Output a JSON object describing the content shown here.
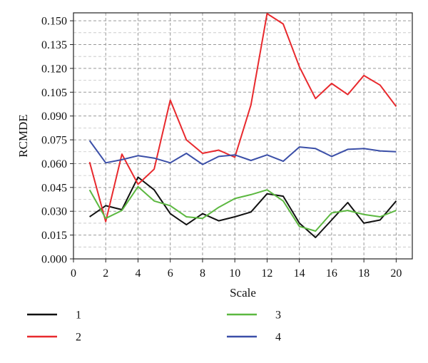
{
  "chart_data": {
    "type": "line",
    "xlabel": "Scale",
    "ylabel": "RCMDE",
    "xlim": [
      0,
      21
    ],
    "ylim": [
      0,
      0.155
    ],
    "x_ticks": [
      "0",
      "2",
      "4",
      "6",
      "8",
      "10",
      "12",
      "14",
      "16",
      "18",
      "20"
    ],
    "y_ticks": [
      "0.000",
      "0.015",
      "0.030",
      "0.045",
      "0.060",
      "0.075",
      "0.090",
      "0.105",
      "0.120",
      "0.135",
      "0.150"
    ],
    "grid": true,
    "legend_position": "bottom",
    "x": [
      1,
      2,
      3,
      4,
      5,
      6,
      7,
      8,
      9,
      10,
      11,
      12,
      13,
      14,
      15,
      16,
      17,
      18,
      19,
      20
    ],
    "series": [
      {
        "name": "1",
        "color": "#111111",
        "values": [
          0.0265,
          0.0335,
          0.031,
          0.0515,
          0.0435,
          0.0285,
          0.0215,
          0.0285,
          0.024,
          0.0265,
          0.0295,
          0.041,
          0.0395,
          0.0225,
          0.0135,
          0.0245,
          0.0355,
          0.0225,
          0.0245,
          0.0365
        ]
      },
      {
        "name": "2",
        "color": "#e8292d",
        "values": [
          0.061,
          0.0235,
          0.066,
          0.047,
          0.0565,
          0.1,
          0.075,
          0.0665,
          0.0685,
          0.064,
          0.097,
          0.1545,
          0.148,
          0.121,
          0.101,
          0.1105,
          0.1035,
          0.1155,
          0.1095,
          0.096
        ]
      },
      {
        "name": "3",
        "color": "#5cb840",
        "values": [
          0.0435,
          0.0255,
          0.0305,
          0.0455,
          0.0365,
          0.0335,
          0.0265,
          0.0255,
          0.0325,
          0.038,
          0.0405,
          0.0435,
          0.0365,
          0.0205,
          0.0175,
          0.029,
          0.0305,
          0.028,
          0.0265,
          0.0305
        ]
      },
      {
        "name": "4",
        "color": "#3b4fa8",
        "values": [
          0.0745,
          0.0605,
          0.0625,
          0.065,
          0.0635,
          0.0605,
          0.0665,
          0.0595,
          0.0645,
          0.0655,
          0.062,
          0.0655,
          0.0615,
          0.0705,
          0.0695,
          0.0645,
          0.069,
          0.0695,
          0.068,
          0.0675
        ]
      }
    ]
  }
}
